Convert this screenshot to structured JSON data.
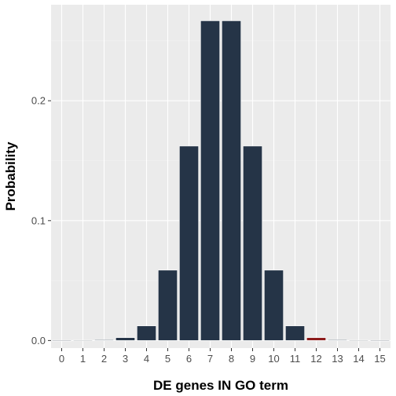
{
  "chart_data": {
    "type": "bar",
    "xlabel": "DE genes IN GO term",
    "ylabel": "Probability",
    "categories": [
      "0",
      "1",
      "2",
      "3",
      "4",
      "5",
      "6",
      "7",
      "8",
      "9",
      "10",
      "11",
      "12",
      "13",
      "14",
      "15"
    ],
    "values": [
      0.0,
      0.0002,
      0.0006,
      0.0024,
      0.0122,
      0.0587,
      0.1622,
      0.2667,
      0.2667,
      0.1622,
      0.0587,
      0.0122,
      0.0024,
      0.0006,
      0.0002,
      0.0
    ],
    "highlight_category": "12",
    "ylim": [
      -0.0063,
      0.2801
    ],
    "yticks": [
      0.0,
      0.1,
      0.2
    ],
    "ytick_labels": [
      "0.0",
      "0.1",
      "0.2"
    ],
    "grid": true,
    "colors": {
      "bar_fill": "#253447",
      "bar_highlight": "#8b1a1a",
      "bar_stroke": "#ffffff",
      "panel_background": "#ebebeb",
      "grid_major": "#ffffff",
      "grid_minor": "#f4f4f4"
    }
  }
}
